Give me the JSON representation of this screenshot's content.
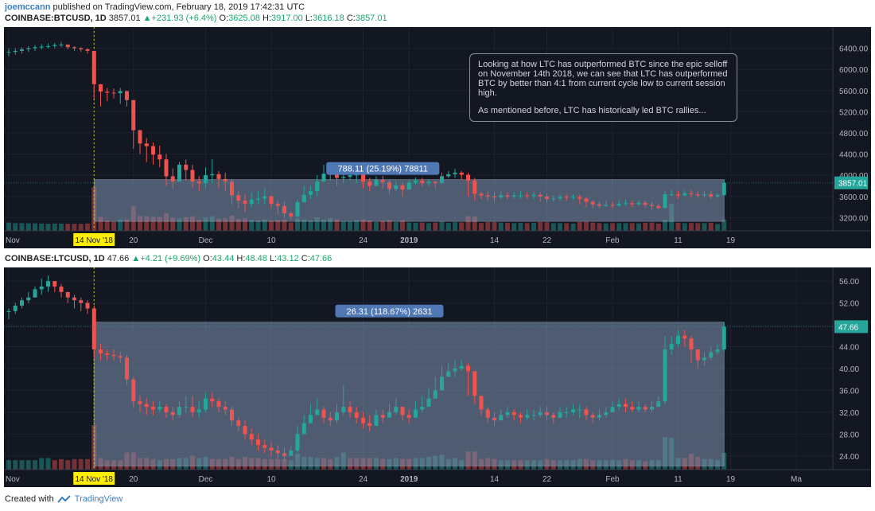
{
  "header": {
    "user": "joemccann",
    "published": "published on TradingView.com, February 18, 2019 17:42:31 UTC"
  },
  "annotation": {
    "p1": "Looking at how LTC has outperformed BTC since the epic selloff on November 14th 2018, we can see that LTC has outperformed BTC by better than 4:1 from current cycle low to current session high.",
    "p2": "As mentioned before, LTC has historically led BTC rallies..."
  },
  "footer": {
    "created": "Created with",
    "brand": "TradingView"
  },
  "colors": {
    "up": "#26a69a",
    "down": "#ef5350",
    "bg": "#131722",
    "range_box": "#8093b0"
  },
  "chart_data": [
    {
      "type": "candlestick",
      "symbol": "COINBASE:BTCUSD, 1D",
      "last": "3857.01",
      "change": "+231.93 (+6.4%)",
      "O": "3625.08",
      "H": "3917.00",
      "L": "3616.18",
      "C": "3857.01",
      "price_label": "3857.01",
      "range_label": "788.11 (25.19%) 78811",
      "ylim": [
        2950,
        6800
      ],
      "yticks": [
        3200,
        3600,
        4000,
        4400,
        4800,
        5200,
        5600,
        6000,
        6400
      ],
      "ytick_labels": [
        "3200.00",
        "3600.00",
        "4000.00",
        "4400.00",
        "4800.00",
        "5200.00",
        "5600.00",
        "6000.00",
        "6400.00"
      ],
      "xticks": [
        {
          "label": "Nov",
          "day": 0
        },
        {
          "label": "14 Nov '18",
          "day": 13,
          "highlight": true
        },
        {
          "label": "20",
          "day": 19
        },
        {
          "label": "Dec",
          "day": 30
        },
        {
          "label": "10",
          "day": 40
        },
        {
          "label": "24",
          "day": 54
        },
        {
          "label": "2019",
          "day": 61
        },
        {
          "label": "14",
          "day": 74
        },
        {
          "label": "22",
          "day": 82
        },
        {
          "label": "Feb",
          "day": 92
        },
        {
          "label": "11",
          "day": 102
        },
        {
          "label": "19",
          "day": 110
        }
      ],
      "range_box": {
        "start_day": 13,
        "end_day": 109,
        "low": 3130,
        "high": 3918
      },
      "close": [
        6330,
        6350,
        6380,
        6400,
        6420,
        6430,
        6440,
        6460,
        6470,
        6420,
        6400,
        6380,
        6350,
        5720,
        5580,
        5560,
        5550,
        5590,
        5420,
        4850,
        4600,
        4550,
        4390,
        4300,
        3980,
        3880,
        4200,
        4100,
        3880,
        3850,
        4000,
        4020,
        3930,
        3880,
        3620,
        3520,
        3460,
        3540,
        3560,
        3600,
        3460,
        3420,
        3280,
        3220,
        3490,
        3630,
        3700,
        3880,
        4030,
        4050,
        3950,
        3970,
        4000,
        4020,
        3880,
        3800,
        3910,
        3870,
        3740,
        3810,
        3730,
        3860,
        3900,
        3850,
        3880,
        3850,
        3980,
        4020,
        4050,
        4010,
        3900,
        3650,
        3620,
        3600,
        3580,
        3620,
        3600,
        3620,
        3620,
        3610,
        3630,
        3600,
        3550,
        3560,
        3590,
        3580,
        3590,
        3560,
        3500,
        3450,
        3420,
        3440,
        3430,
        3460,
        3470,
        3450,
        3480,
        3440,
        3420,
        3380,
        3640,
        3640,
        3620,
        3660,
        3640,
        3620,
        3640,
        3600,
        3625,
        3857
      ],
      "high": [
        6400,
        6400,
        6420,
        6440,
        6460,
        6480,
        6490,
        6500,
        6520,
        6470,
        6440,
        6420,
        6400,
        6350,
        5720,
        5650,
        5640,
        5650,
        5600,
        5420,
        4860,
        4700,
        4620,
        4560,
        4400,
        4130,
        4250,
        4300,
        4200,
        3980,
        4150,
        4300,
        4080,
        4050,
        3930,
        3700,
        3650,
        3680,
        3700,
        3750,
        3620,
        3520,
        3500,
        3310,
        3550,
        3800,
        3800,
        4000,
        4200,
        4250,
        4100,
        4050,
        4100,
        4120,
        4050,
        3950,
        3980,
        3990,
        3920,
        3880,
        3860,
        3900,
        3960,
        3950,
        3920,
        3900,
        4050,
        4080,
        4120,
        4080,
        4050,
        3950,
        3680,
        3700,
        3680,
        3700,
        3680,
        3680,
        3700,
        3680,
        3690,
        3680,
        3650,
        3620,
        3640,
        3640,
        3640,
        3630,
        3590,
        3530,
        3500,
        3510,
        3500,
        3520,
        3540,
        3520,
        3530,
        3520,
        3500,
        3460,
        3700,
        3720,
        3700,
        3720,
        3720,
        3700,
        3700,
        3700,
        3660,
        3917
      ],
      "low": [
        6250,
        6280,
        6300,
        6330,
        6350,
        6380,
        6400,
        6400,
        6420,
        6380,
        6350,
        6330,
        6300,
        5450,
        5300,
        5400,
        5450,
        5350,
        5300,
        4500,
        4400,
        4250,
        4200,
        4150,
        3800,
        3750,
        3900,
        3900,
        3750,
        3700,
        3750,
        3850,
        3750,
        3700,
        3450,
        3380,
        3300,
        3400,
        3450,
        3450,
        3380,
        3250,
        3200,
        3150,
        3200,
        3500,
        3550,
        3600,
        3900,
        3900,
        3800,
        3850,
        3900,
        3850,
        3750,
        3700,
        3800,
        3750,
        3650,
        3700,
        3600,
        3750,
        3820,
        3800,
        3800,
        3750,
        3850,
        3950,
        3950,
        3920,
        3600,
        3520,
        3550,
        3520,
        3500,
        3550,
        3550,
        3560,
        3560,
        3560,
        3550,
        3500,
        3480,
        3500,
        3520,
        3520,
        3540,
        3450,
        3400,
        3380,
        3380,
        3400,
        3380,
        3400,
        3420,
        3400,
        3420,
        3380,
        3350,
        3360,
        3420,
        3600,
        3560,
        3600,
        3590,
        3580,
        3580,
        3560,
        3580,
        3616
      ]
    },
    {
      "type": "candlestick",
      "symbol": "COINBASE:LTCUSD, 1D",
      "last": "47.66",
      "change": "+4.21 (+9.69%)",
      "O": "43.44",
      "H": "48.48",
      "L": "43.12",
      "C": "47.66",
      "price_label": "47.66",
      "range_label": "26.31 (118.67%) 2631",
      "ylim": [
        21.5,
        58.5
      ],
      "yticks": [
        24,
        28,
        32,
        36,
        40,
        44,
        48,
        52,
        56
      ],
      "ytick_labels": [
        "24.00",
        "28.00",
        "32.00",
        "36.00",
        "40.00",
        "44.00",
        "48.00",
        "52.00",
        "56.00"
      ],
      "xticks": [
        {
          "label": "Nov",
          "day": 0
        },
        {
          "label": "14 Nov '18",
          "day": 13,
          "highlight": true
        },
        {
          "label": "20",
          "day": 19
        },
        {
          "label": "Dec",
          "day": 30
        },
        {
          "label": "10",
          "day": 40
        },
        {
          "label": "24",
          "day": 54
        },
        {
          "label": "2019",
          "day": 61
        },
        {
          "label": "14",
          "day": 74
        },
        {
          "label": "22",
          "day": 82
        },
        {
          "label": "Feb",
          "day": 92
        },
        {
          "label": "11",
          "day": 102
        },
        {
          "label": "19",
          "day": 110
        },
        {
          "label": "Ma",
          "day": 120
        }
      ],
      "range_box": {
        "start_day": 13,
        "end_day": 109,
        "low": 22.17,
        "high": 48.48
      },
      "close": [
        50.5,
        51.5,
        52.5,
        53.0,
        54.5,
        55.0,
        56.0,
        55.0,
        54.0,
        53.0,
        52.5,
        52.0,
        51.0,
        43.5,
        42.8,
        42.5,
        42.3,
        42.0,
        38.0,
        34.0,
        33.5,
        33.0,
        32.5,
        33.0,
        32.0,
        31.5,
        33.0,
        33.0,
        32.0,
        32.5,
        34.5,
        34.0,
        33.0,
        32.5,
        30.5,
        29.5,
        28.0,
        27.0,
        26.0,
        25.5,
        25.0,
        24.5,
        24.0,
        25.0,
        28.0,
        30.0,
        31.5,
        32.5,
        31.0,
        30.5,
        32.0,
        33.0,
        32.0,
        31.0,
        30.0,
        29.5,
        31.5,
        31.0,
        32.0,
        33.0,
        31.5,
        31.0,
        32.5,
        33.0,
        34.5,
        36.0,
        38.5,
        39.5,
        40.0,
        40.5,
        39.5,
        35.0,
        32.5,
        31.0,
        30.5,
        31.5,
        32.0,
        31.5,
        31.0,
        31.5,
        31.5,
        32.0,
        31.5,
        31.0,
        32.0,
        32.0,
        32.5,
        32.5,
        31.5,
        31.0,
        31.5,
        32.0,
        33.0,
        33.5,
        33.0,
        32.5,
        33.0,
        32.5,
        33.0,
        34.0,
        43.5,
        44.5,
        46.0,
        45.5,
        43.5,
        41.5,
        42.0,
        43.0,
        43.5,
        47.66
      ],
      "high": [
        51.0,
        52.0,
        53.0,
        54.0,
        55.0,
        56.5,
        57.0,
        56.0,
        55.5,
        54.0,
        53.5,
        53.0,
        52.5,
        51.5,
        44.5,
        43.5,
        43.5,
        43.0,
        42.5,
        38.5,
        35.0,
        34.5,
        34.0,
        34.0,
        33.5,
        33.0,
        34.0,
        35.0,
        35.0,
        34.0,
        35.5,
        35.5,
        34.5,
        34.0,
        33.0,
        31.0,
        30.5,
        29.0,
        28.0,
        27.0,
        26.5,
        26.0,
        25.5,
        26.0,
        29.5,
        31.5,
        33.5,
        34.5,
        33.0,
        32.0,
        33.5,
        37.0,
        34.0,
        33.0,
        32.0,
        31.5,
        32.5,
        32.5,
        33.5,
        34.5,
        33.0,
        32.5,
        34.0,
        35.0,
        36.5,
        38.5,
        40.5,
        41.0,
        41.5,
        41.5,
        41.0,
        39.5,
        34.0,
        33.0,
        32.0,
        32.5,
        33.0,
        32.5,
        32.0,
        32.5,
        32.5,
        33.0,
        33.0,
        32.0,
        33.0,
        33.0,
        33.5,
        33.5,
        33.0,
        32.0,
        32.5,
        33.0,
        34.0,
        34.5,
        34.5,
        34.0,
        34.0,
        33.5,
        34.0,
        35.0,
        46.0,
        46.0,
        47.0,
        47.0,
        46.0,
        43.5,
        43.0,
        44.0,
        44.5,
        48.48
      ],
      "low": [
        49.0,
        50.0,
        51.0,
        52.0,
        53.0,
        53.5,
        54.0,
        54.0,
        53.0,
        52.0,
        51.0,
        50.5,
        50.0,
        42.0,
        41.5,
        41.5,
        41.5,
        41.0,
        37.0,
        33.0,
        32.0,
        31.5,
        31.5,
        32.0,
        31.0,
        30.5,
        31.0,
        32.0,
        31.0,
        31.0,
        32.0,
        33.0,
        32.0,
        31.5,
        29.5,
        28.5,
        27.0,
        26.0,
        25.0,
        24.5,
        24.0,
        23.5,
        23.0,
        24.0,
        24.5,
        28.0,
        30.0,
        31.5,
        30.0,
        29.5,
        30.0,
        31.5,
        31.0,
        30.0,
        29.0,
        28.5,
        29.5,
        30.0,
        31.0,
        31.5,
        30.5,
        30.0,
        31.0,
        32.0,
        33.0,
        34.5,
        36.0,
        38.5,
        38.5,
        39.5,
        35.0,
        33.5,
        31.5,
        30.0,
        29.5,
        30.5,
        31.0,
        30.5,
        30.0,
        30.5,
        30.5,
        31.0,
        30.5,
        30.0,
        31.0,
        31.0,
        31.5,
        31.0,
        30.5,
        30.0,
        30.5,
        31.0,
        32.0,
        32.5,
        32.0,
        32.0,
        32.0,
        32.0,
        32.0,
        33.0,
        33.5,
        42.5,
        44.0,
        44.0,
        41.0,
        40.0,
        40.5,
        41.5,
        42.5,
        43.12
      ]
    }
  ]
}
